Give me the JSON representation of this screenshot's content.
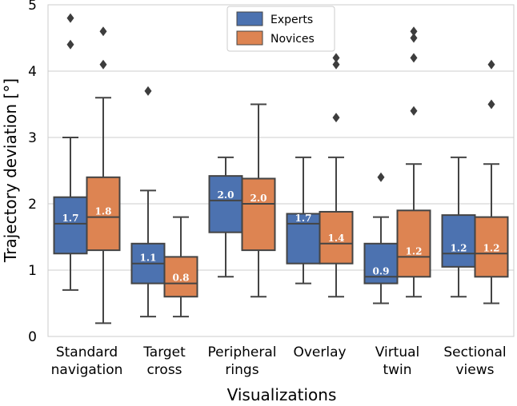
{
  "chart_data": {
    "type": "boxplot",
    "title": "",
    "xlabel": "Visualizations",
    "ylabel": "Trajectory deviation [°]",
    "ylim": [
      0,
      5
    ],
    "yticks": [
      "0",
      "1",
      "2",
      "3",
      "4",
      "5"
    ],
    "grid": "horizontal",
    "legend_position": "top-center",
    "categories": [
      [
        "Standard",
        "navigation"
      ],
      [
        "Target",
        "cross"
      ],
      [
        "Peripheral",
        "rings"
      ],
      [
        "Overlay"
      ],
      [
        "Virtual",
        "twin"
      ],
      [
        "Sectional",
        "views"
      ]
    ],
    "series": [
      {
        "name": "Experts",
        "color": "#4c72b0",
        "boxes": [
          {
            "q1": 1.25,
            "median": 1.7,
            "q3": 2.1,
            "wlow": 0.7,
            "whigh": 3.0,
            "fliers": [
              4.4,
              4.8
            ],
            "label": "1.7"
          },
          {
            "q1": 0.8,
            "median": 1.1,
            "q3": 1.4,
            "wlow": 0.3,
            "whigh": 2.2,
            "fliers": [
              3.7
            ],
            "label": "1.1"
          },
          {
            "q1": 1.57,
            "median": 2.05,
            "q3": 2.42,
            "wlow": 0.9,
            "whigh": 2.7,
            "fliers": [],
            "label": "2.0"
          },
          {
            "q1": 1.1,
            "median": 1.7,
            "q3": 1.85,
            "wlow": 0.8,
            "whigh": 2.7,
            "fliers": [],
            "label": "1.7"
          },
          {
            "q1": 0.8,
            "median": 0.9,
            "q3": 1.4,
            "wlow": 0.5,
            "whigh": 1.8,
            "fliers": [
              2.4
            ],
            "label": "0.9"
          },
          {
            "q1": 1.05,
            "median": 1.25,
            "q3": 1.83,
            "wlow": 0.6,
            "whigh": 2.7,
            "fliers": [],
            "label": "1.2"
          }
        ]
      },
      {
        "name": "Novices",
        "color": "#dd8452",
        "boxes": [
          {
            "q1": 1.3,
            "median": 1.8,
            "q3": 2.4,
            "wlow": 0.2,
            "whigh": 3.6,
            "fliers": [
              4.1,
              4.6
            ],
            "label": "1.8"
          },
          {
            "q1": 0.6,
            "median": 0.8,
            "q3": 1.2,
            "wlow": 0.3,
            "whigh": 1.8,
            "fliers": [],
            "label": "0.8"
          },
          {
            "q1": 1.3,
            "median": 2.0,
            "q3": 2.38,
            "wlow": 0.6,
            "whigh": 3.5,
            "fliers": [],
            "label": "2.0"
          },
          {
            "q1": 1.1,
            "median": 1.4,
            "q3": 1.88,
            "wlow": 0.6,
            "whigh": 2.7,
            "fliers": [
              3.3,
              4.1,
              4.2
            ],
            "label": "1.4"
          },
          {
            "q1": 0.9,
            "median": 1.2,
            "q3": 1.9,
            "wlow": 0.6,
            "whigh": 2.6,
            "fliers": [
              3.4,
              4.2,
              4.5,
              4.6
            ],
            "label": "1.2"
          },
          {
            "q1": 0.9,
            "median": 1.25,
            "q3": 1.8,
            "wlow": 0.5,
            "whigh": 2.6,
            "fliers": [
              3.5,
              4.1
            ],
            "label": "1.2"
          }
        ]
      }
    ]
  }
}
